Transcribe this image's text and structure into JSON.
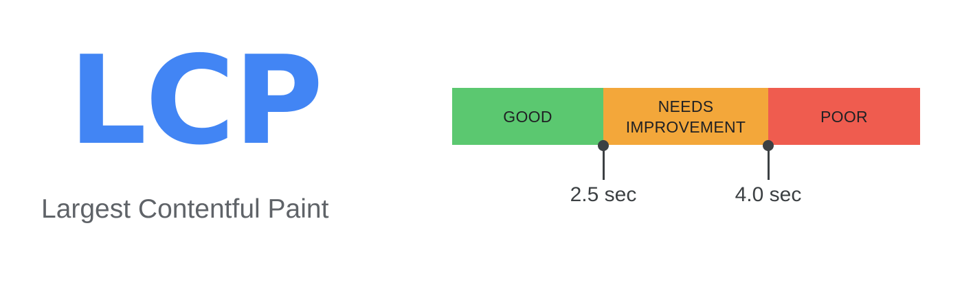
{
  "metric": {
    "abbreviation": "LCP",
    "name": "Largest Contentful Paint",
    "color": "#4285f4"
  },
  "bar": {
    "segments": [
      {
        "label": "GOOD",
        "color": "#5bc870"
      },
      {
        "label": "NEEDS\nIMPROVEMENT",
        "color": "#f3a73a"
      },
      {
        "label": "POOR",
        "color": "#ef5c4f"
      }
    ]
  },
  "thresholds": [
    {
      "label": "2.5 sec"
    },
    {
      "label": "4.0 sec"
    }
  ],
  "colors": {
    "marker": "#3c4043",
    "name_text": "#5f6368"
  }
}
